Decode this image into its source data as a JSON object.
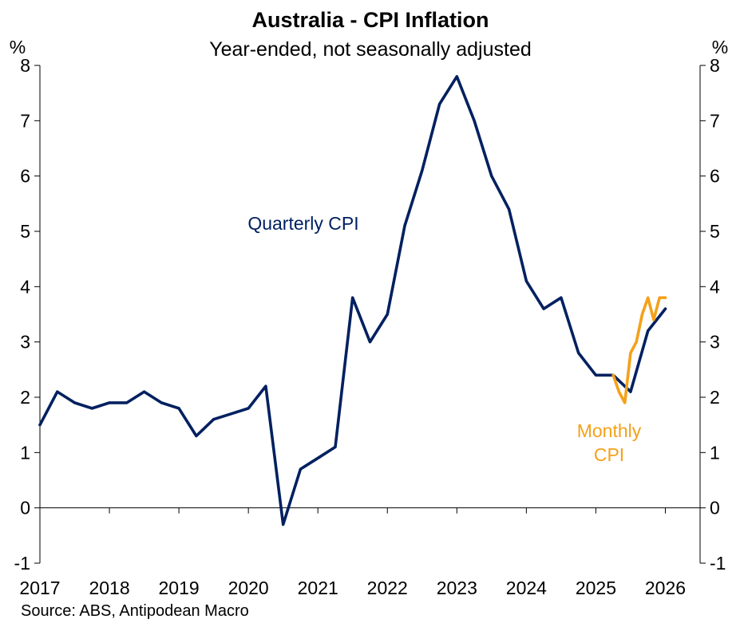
{
  "chart_data": {
    "type": "line",
    "title": "Australia - CPI Inflation",
    "subtitle": "Year-ended, not seasonally adjusted",
    "y_unit_left": "%",
    "y_unit_right": "%",
    "ylim": [
      -1,
      8
    ],
    "yticks": [
      -1,
      0,
      1,
      2,
      3,
      4,
      5,
      6,
      7,
      8
    ],
    "ytick_labels": [
      "-1",
      "0",
      "1",
      "2",
      "3",
      "4",
      "5",
      "6",
      "7",
      "8"
    ],
    "xlim": [
      2017,
      2026.5
    ],
    "xticks": [
      2017,
      2018,
      2019,
      2020,
      2021,
      2022,
      2023,
      2024,
      2025,
      2026
    ],
    "xtick_labels": [
      "2017",
      "2018",
      "2019",
      "2020",
      "2021",
      "2022",
      "2023",
      "2024",
      "2025",
      "2026"
    ],
    "grid": false,
    "source": "Source: ABS, Antipodean Macro",
    "series": [
      {
        "name": "Quarterly CPI",
        "label_lines": [
          "Quarterly CPI"
        ],
        "color": "#002060",
        "x": [
          2017.0,
          2017.25,
          2017.5,
          2017.75,
          2018.0,
          2018.25,
          2018.5,
          2018.75,
          2019.0,
          2019.25,
          2019.5,
          2019.75,
          2020.0,
          2020.25,
          2020.5,
          2020.75,
          2021.0,
          2021.25,
          2021.5,
          2021.75,
          2022.0,
          2022.25,
          2022.5,
          2022.75,
          2023.0,
          2023.25,
          2023.5,
          2023.75,
          2024.0,
          2024.25,
          2024.5,
          2024.75,
          2025.0,
          2025.25,
          2025.5,
          2025.75,
          2026.0
        ],
        "values": [
          1.5,
          2.1,
          1.9,
          1.8,
          1.9,
          1.9,
          2.1,
          1.9,
          1.8,
          1.3,
          1.6,
          1.7,
          1.8,
          2.2,
          -0.3,
          0.7,
          0.9,
          1.1,
          3.8,
          3.0,
          3.5,
          5.1,
          6.1,
          7.3,
          7.8,
          7.0,
          6.0,
          5.4,
          4.1,
          3.6,
          3.8,
          2.8,
          2.4,
          2.4,
          2.1,
          3.2,
          3.6
        ]
      },
      {
        "name": "Monthly CPI",
        "label_lines": [
          "Monthly",
          "CPI"
        ],
        "color": "#F4A11A",
        "x": [
          2025.25,
          2025.333,
          2025.417,
          2025.5,
          2025.583,
          2025.667,
          2025.75,
          2025.833,
          2025.917,
          2026.0
        ],
        "values": [
          2.4,
          2.1,
          1.9,
          2.8,
          3.0,
          3.5,
          3.8,
          3.4,
          3.8,
          3.8
        ]
      }
    ]
  }
}
